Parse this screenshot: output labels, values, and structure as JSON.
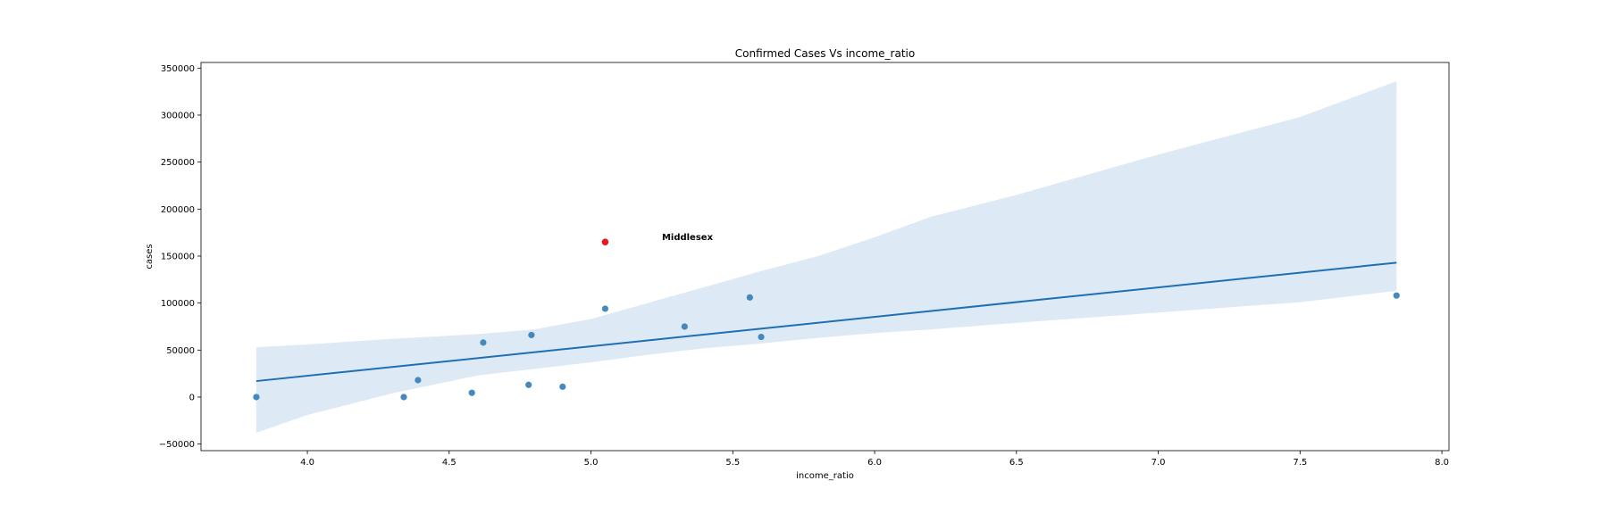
{
  "chart_data": {
    "type": "scatter",
    "title": "Confirmed Cases Vs income_ratio",
    "xlabel": "income_ratio",
    "ylabel": "cases",
    "xlim": [
      3.625,
      8.025
    ],
    "ylim": [
      -57000,
      356000
    ],
    "x_ticks": [
      4.0,
      4.5,
      5.0,
      5.5,
      6.0,
      6.5,
      7.0,
      7.5,
      8.0
    ],
    "x_tick_labels": [
      "4.0",
      "4.5",
      "5.0",
      "5.5",
      "6.0",
      "6.5",
      "7.0",
      "7.5",
      "8.0"
    ],
    "y_ticks": [
      -50000,
      0,
      50000,
      100000,
      150000,
      200000,
      250000,
      300000,
      350000
    ],
    "y_tick_labels": [
      "−50000",
      "0",
      "50000",
      "100000",
      "150000",
      "200000",
      "250000",
      "300000",
      "350000"
    ],
    "grid": false,
    "points": [
      {
        "x": 3.82,
        "y": 0
      },
      {
        "x": 4.34,
        "y": 0
      },
      {
        "x": 4.39,
        "y": 18000
      },
      {
        "x": 4.58,
        "y": 4500
      },
      {
        "x": 4.62,
        "y": 58000
      },
      {
        "x": 4.78,
        "y": 13000
      },
      {
        "x": 4.79,
        "y": 66000
      },
      {
        "x": 4.9,
        "y": 11000
      },
      {
        "x": 5.05,
        "y": 94000
      },
      {
        "x": 5.33,
        "y": 75000
      },
      {
        "x": 5.56,
        "y": 106000
      },
      {
        "x": 5.6,
        "y": 64000
      },
      {
        "x": 7.84,
        "y": 108000
      }
    ],
    "highlight": {
      "x": 5.05,
      "y": 165000,
      "label": "Middlesex",
      "label_x": 5.25,
      "label_y": 167000
    },
    "regression": {
      "x": [
        3.82,
        7.84
      ],
      "y": [
        17000,
        143000
      ],
      "ci_x": [
        3.82,
        4.0,
        4.3,
        4.6,
        4.8,
        5.0,
        5.2,
        5.4,
        5.6,
        5.8,
        6.0,
        6.2,
        6.5,
        7.0,
        7.5,
        7.84
      ],
      "ci_upper": [
        53000,
        56000,
        62000,
        67000,
        72000,
        83000,
        100000,
        117000,
        134000,
        150000,
        170000,
        192000,
        215000,
        258000,
        298000,
        336000
      ],
      "ci_lower": [
        -38000,
        -19000,
        4000,
        23000,
        30000,
        37000,
        45000,
        52000,
        57000,
        63000,
        68000,
        72000,
        79000,
        90000,
        101000,
        113000
      ]
    },
    "colors": {
      "points": "#3b84bb",
      "line": "#1f6fb4",
      "band": "#dde9f4",
      "highlight": "#e8171c"
    }
  }
}
